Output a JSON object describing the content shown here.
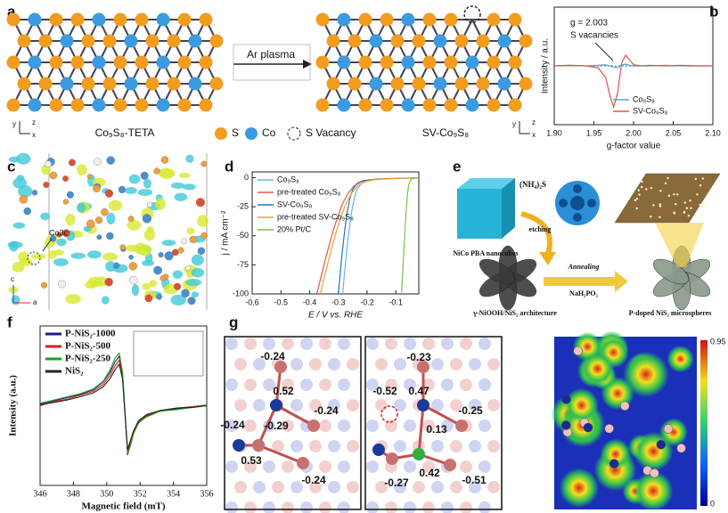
{
  "panel_labels": [
    "a",
    "b",
    "c",
    "d",
    "e",
    "f",
    "g"
  ],
  "panel_a": {
    "left_caption": "Co₉S₈-TETA",
    "arrow_label": "Ar plasma",
    "right_caption": "SV-Co₉S₈",
    "legend": [
      "S",
      "Co",
      "S Vacancy"
    ],
    "axis_letters": [
      "y",
      "z",
      "x"
    ]
  },
  "panel_c": {
    "site_label": "Co3c",
    "axis_letters": [
      "c",
      "a"
    ]
  },
  "panel_e": {
    "start": "NiCo PBA nanocubes",
    "reagent": "(NH₄)₂S",
    "step": "etching",
    "middle": "γ-NiOOH/NiS₂ architecture",
    "condition": "Annealing",
    "reagent2": "NaH₂PO₂",
    "product": "P-doped NiS₂ microspheres"
  },
  "panel_g": {
    "left_charges": [
      "-0.24",
      "0.52",
      "-0.24",
      "-0.29",
      "-0.24",
      "0.53",
      "-0.24"
    ],
    "middle_charges": [
      "-0.23",
      "-0.52",
      "0.47",
      "-0.25",
      "0.13",
      "-0.27",
      "0.42",
      "-0.51"
    ],
    "colorbar_labels": [
      "0.95",
      "0"
    ]
  },
  "chart_data": [
    {
      "type": "line",
      "x_label": "g-factor value",
      "y_label": "Intensity / a.u.",
      "annotations": [
        "g = 2.003",
        "S vacancies"
      ],
      "x": [
        1.9,
        1.92,
        1.94,
        1.955,
        1.965,
        1.97,
        1.975,
        1.98,
        1.985,
        1.99,
        1.995,
        2.0,
        2.01,
        2.02,
        2.04,
        2.06,
        2.08,
        2.1
      ],
      "xlim": [
        1.9,
        2.1
      ],
      "xticks": [
        {
          "value": 1.9,
          "label": "1.90"
        },
        {
          "value": 1.95,
          "label": "1.95"
        },
        {
          "value": 2.0,
          "label": "2.00"
        },
        {
          "value": 2.05,
          "label": "2.05"
        },
        {
          "value": 2.1,
          "label": "2.10"
        }
      ],
      "ylim": [
        -1,
        1
      ],
      "legend": "lower right",
      "series": [
        {
          "name": "Co₉S₈",
          "color": "#4aa8d8",
          "values": [
            0,
            0.01,
            0,
            0.01,
            0.02,
            0,
            -0.02,
            -0.03,
            0.02,
            0.03,
            0.01,
            0,
            0,
            0,
            0.01,
            0,
            0,
            0
          ]
        },
        {
          "name": "SV-Co₉S₈",
          "color": "#e0524a",
          "values": [
            0,
            0.01,
            0,
            -0.03,
            -0.2,
            -0.5,
            -0.7,
            -0.45,
            0.05,
            0.18,
            0.1,
            0.02,
            0,
            0.01,
            0,
            0.01,
            0,
            0
          ]
        }
      ]
    },
    {
      "type": "line",
      "x_label": "E / V vs. RHE",
      "y_label": "j / mA cm⁻²",
      "xlim": [
        -0.6,
        -0.02
      ],
      "xticks": [
        -0.6,
        -0.5,
        -0.4,
        -0.3,
        -0.2,
        -0.1
      ],
      "ylim": [
        -100,
        5
      ],
      "yticks": [
        0,
        -25,
        -50,
        -75,
        -100
      ],
      "legend": "upper left",
      "series": [
        {
          "name": "Co₉S₈",
          "color": "#5fb8e8",
          "x": [
            -0.285,
            -0.28,
            -0.275,
            -0.27,
            -0.265,
            -0.26,
            -0.255,
            -0.245,
            -0.235,
            -0.22,
            -0.2,
            -0.15,
            -0.1,
            -0.05,
            -0.02
          ],
          "values": [
            -100,
            -86,
            -73,
            -61,
            -50,
            -40,
            -31,
            -18,
            -10,
            -5,
            -2.5,
            -1.2,
            -0.7,
            -0.4,
            -0.2
          ]
        },
        {
          "name": "pre-treated Co₉S₈",
          "color": "#e35a4f",
          "x": [
            -0.375,
            -0.36,
            -0.345,
            -0.33,
            -0.315,
            -0.3,
            -0.285,
            -0.265,
            -0.245,
            -0.22,
            -0.19,
            -0.15,
            -0.1,
            -0.05,
            -0.02
          ],
          "values": [
            -100,
            -85,
            -70,
            -56,
            -43,
            -32,
            -22,
            -13,
            -7,
            -3.5,
            -1.8,
            -1,
            -0.6,
            -0.3,
            -0.2
          ]
        },
        {
          "name": "SV-Co₉S₈",
          "color": "#2f6fc0",
          "x": [
            -0.3,
            -0.295,
            -0.29,
            -0.285,
            -0.28,
            -0.275,
            -0.27,
            -0.26,
            -0.25,
            -0.235,
            -0.215,
            -0.165,
            -0.115,
            -0.065,
            -0.02
          ],
          "values": [
            -100,
            -86,
            -73,
            -61,
            -50,
            -40,
            -31,
            -18,
            -10,
            -5,
            -2.5,
            -1.2,
            -0.7,
            -0.4,
            -0.2
          ]
        },
        {
          "name": "pre-treated SV-Co₉S₈",
          "color": "#f0a030",
          "x": [
            -0.363,
            -0.348,
            -0.333,
            -0.318,
            -0.303,
            -0.288,
            -0.273,
            -0.253,
            -0.233,
            -0.208,
            -0.178,
            -0.138,
            -0.088,
            -0.05,
            -0.02
          ],
          "values": [
            -100,
            -85,
            -70,
            -56,
            -43,
            -32,
            -22,
            -13,
            -7,
            -3.5,
            -1.8,
            -1,
            -0.6,
            -0.3,
            -0.2
          ]
        },
        {
          "name": "20% Pt/C",
          "color": "#7ac04a",
          "x": [
            -0.08,
            -0.077,
            -0.074,
            -0.071,
            -0.068,
            -0.065,
            -0.062,
            -0.059,
            -0.055,
            -0.05,
            -0.045,
            -0.035,
            -0.02
          ],
          "values": [
            -100,
            -86,
            -72,
            -58,
            -45,
            -33,
            -22,
            -13,
            -6,
            -2.5,
            -1,
            -0.4,
            -0.2
          ]
        }
      ]
    },
    {
      "type": "line",
      "x_label": "Magnetic field (mT)",
      "y_label": "Intensity (a.u.)",
      "x": [
        346,
        346.8,
        347.6,
        348.4,
        349.2,
        349.8,
        350.2,
        350.5,
        350.75,
        350.95,
        351.1,
        351.25,
        351.4,
        351.6,
        351.9,
        352.4,
        353.2,
        354.2,
        355.2,
        356
      ],
      "xlim": [
        346,
        356
      ],
      "xticks": [
        346,
        348,
        350,
        352,
        354,
        356
      ],
      "ylim": [
        -1,
        1
      ],
      "legend": "upper left",
      "series": [
        {
          "name": "P-NiS₂-1000",
          "color": "#1c1c8c",
          "values": [
            0.02,
            0.06,
            0.1,
            0.14,
            0.2,
            0.3,
            0.42,
            0.55,
            0.62,
            0.4,
            -0.1,
            -0.62,
            -0.5,
            -0.35,
            -0.22,
            -0.13,
            -0.07,
            -0.04,
            -0.02,
            0
          ]
        },
        {
          "name": "P-NiS₂-500",
          "color": "#e01818",
          "values": [
            0,
            0.05,
            0.08,
            0.13,
            0.18,
            0.27,
            0.38,
            0.5,
            0.57,
            0.36,
            -0.12,
            -0.58,
            -0.47,
            -0.33,
            -0.2,
            -0.12,
            -0.06,
            -0.03,
            -0.01,
            0.01
          ]
        },
        {
          "name": "P-NiS₂-250",
          "color": "#1aa51a",
          "values": [
            0.03,
            0.07,
            0.11,
            0.15,
            0.21,
            0.31,
            0.45,
            0.6,
            0.66,
            0.42,
            -0.08,
            -0.6,
            -0.52,
            -0.36,
            -0.21,
            -0.14,
            -0.07,
            -0.05,
            -0.02,
            0.01
          ]
        },
        {
          "name": "NiS₂",
          "color": "#222222",
          "values": [
            0.01,
            0.04,
            0.07,
            0.11,
            0.16,
            0.24,
            0.34,
            0.45,
            0.52,
            0.33,
            -0.12,
            -0.55,
            -0.45,
            -0.32,
            -0.19,
            -0.11,
            -0.06,
            -0.03,
            -0.02,
            0
          ]
        }
      ]
    }
  ]
}
